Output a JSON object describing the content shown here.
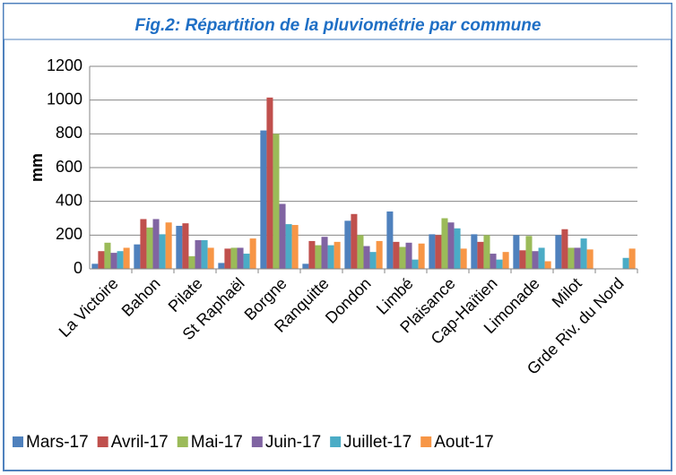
{
  "chart_data": {
    "type": "bar",
    "title": "Fig.2: Répartition de la pluviométrie par commune",
    "y_label": "mm",
    "categories": [
      "La Victoire",
      "Bahon",
      "Pilate",
      "St Raphaël",
      "Borgne",
      "Ranquitte",
      "Dondon",
      "Limbé",
      "Plaisance",
      "Cap-Haïtien",
      "Limonade",
      "Milot",
      "Grde Riv. du Nord"
    ],
    "series": [
      {
        "name": "Mars-17",
        "color": "#4F81BD",
        "values": [
          30,
          145,
          255,
          35,
          820,
          30,
          285,
          340,
          205,
          205,
          200,
          200,
          null
        ]
      },
      {
        "name": "Avril-17",
        "color": "#C0504D",
        "values": [
          105,
          295,
          270,
          120,
          1015,
          165,
          325,
          160,
          200,
          160,
          110,
          235,
          null
        ]
      },
      {
        "name": "Mai-17",
        "color": "#9BBB59",
        "values": [
          155,
          245,
          75,
          125,
          800,
          140,
          200,
          130,
          300,
          200,
          195,
          125,
          null
        ]
      },
      {
        "name": "Juin-17",
        "color": "#8064A2",
        "values": [
          95,
          295,
          170,
          125,
          385,
          190,
          135,
          155,
          275,
          90,
          105,
          125,
          null
        ]
      },
      {
        "name": "Juillet-17",
        "color": "#4BACC6",
        "values": [
          105,
          205,
          170,
          90,
          265,
          140,
          100,
          55,
          240,
          55,
          125,
          180,
          65
        ]
      },
      {
        "name": "Aout-17",
        "color": "#F79646",
        "values": [
          125,
          275,
          125,
          180,
          260,
          160,
          165,
          150,
          120,
          100,
          45,
          115,
          120
        ]
      }
    ],
    "ylim": [
      0,
      1200
    ],
    "yticks": [
      0,
      200,
      400,
      600,
      800,
      1000,
      1200
    ],
    "grid": true,
    "legend": "bottom"
  }
}
